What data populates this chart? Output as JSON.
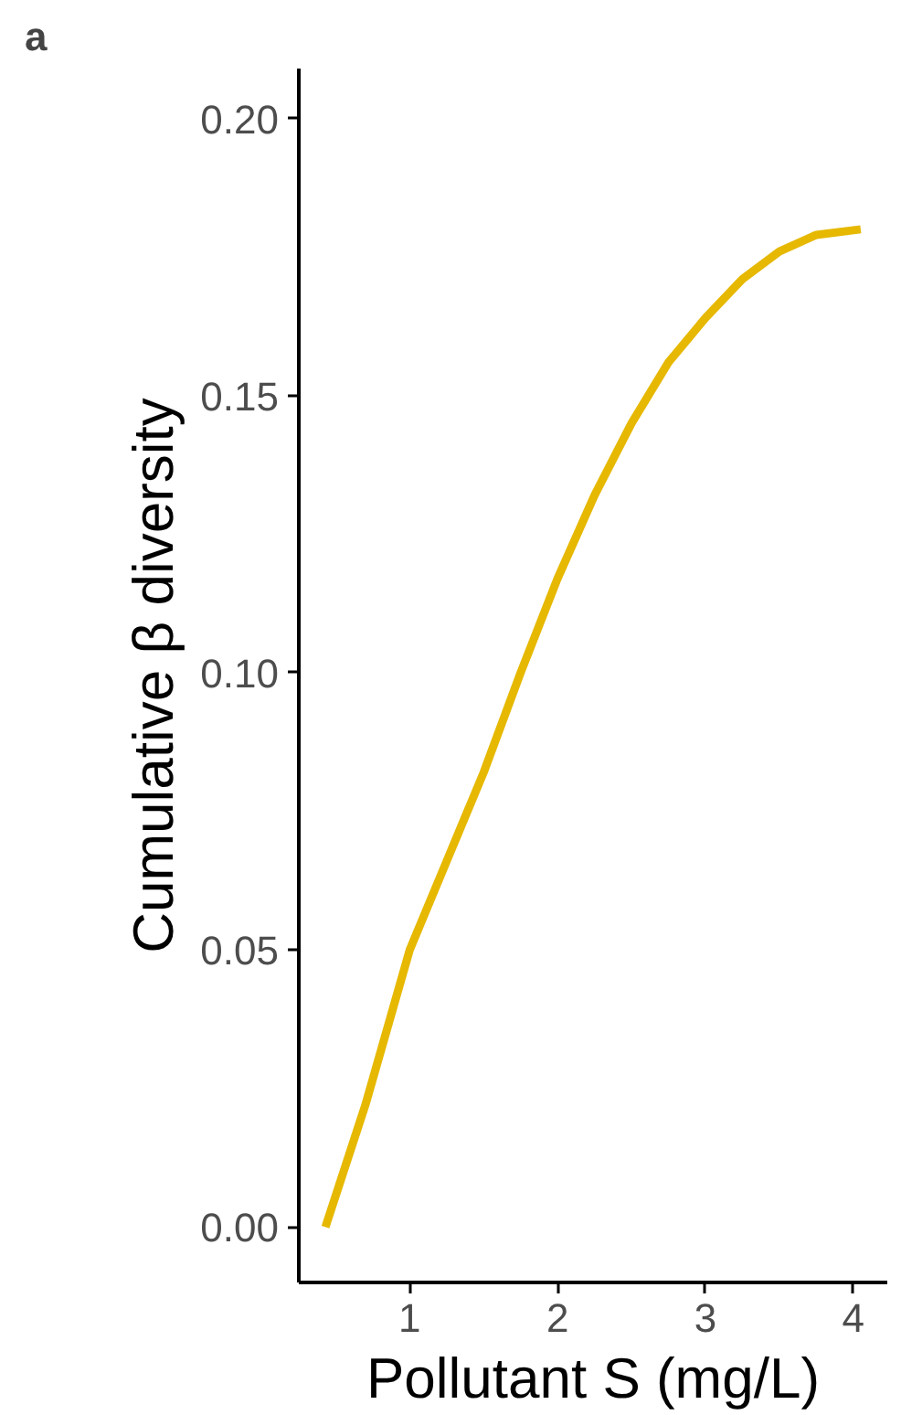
{
  "chart_data": {
    "type": "line",
    "title": "a",
    "xlabel": "Pollutant S (mg/L)",
    "ylabel": "Cumulative β diversity",
    "x": [
      0.43,
      0.7,
      1.0,
      1.25,
      1.5,
      1.75,
      2.0,
      2.25,
      2.5,
      2.75,
      3.0,
      3.25,
      3.5,
      3.75,
      4.05
    ],
    "series": [
      {
        "color": "#e6b800",
        "values": [
          0.0,
          0.022,
          0.05,
          0.066,
          0.082,
          0.1,
          0.117,
          0.132,
          0.145,
          0.156,
          0.164,
          0.171,
          0.176,
          0.179,
          0.18
        ]
      }
    ],
    "xlim": [
      0.25,
      4.23
    ],
    "ylim": [
      -0.01,
      0.209
    ],
    "xticks": [
      1,
      2,
      3,
      4
    ],
    "yticks": [
      {
        "value": 0,
        "label": "0.00"
      },
      {
        "value": 0.05,
        "label": "0.05"
      },
      {
        "value": 0.1,
        "label": "0.10"
      },
      {
        "value": 0.15,
        "label": "0.15"
      },
      {
        "value": 0.2,
        "label": "0.20"
      }
    ],
    "grid": false,
    "marker": "none",
    "line_style": "solid"
  }
}
